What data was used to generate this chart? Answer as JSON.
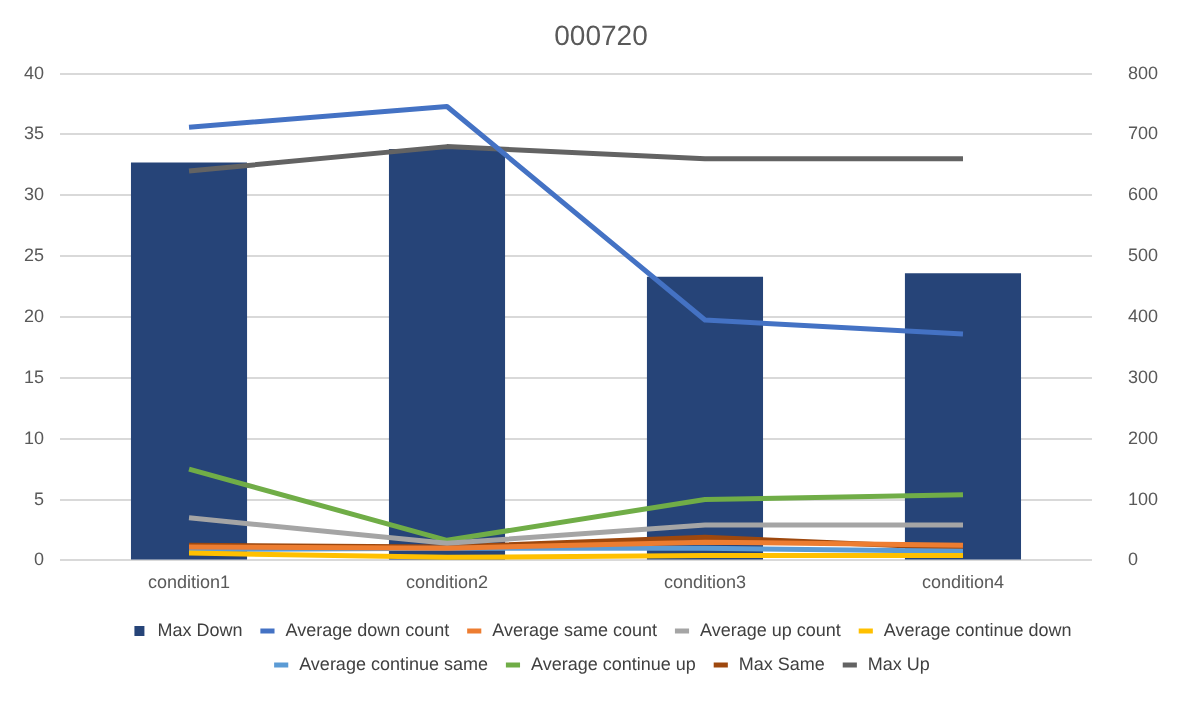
{
  "chart_data": {
    "type": "bar",
    "title": "000720",
    "categories": [
      "condition1",
      "condition2",
      "condition3",
      "condition4"
    ],
    "series": [
      {
        "name": "Max Down",
        "color": "#264478",
        "values": [
          32.7,
          33.8,
          23.3,
          23.6
        ]
      },
      {
        "name": "Average down count",
        "type": "line",
        "axis": "y2",
        "color": "#4472c4",
        "values": [
          712,
          746,
          395,
          372
        ]
      },
      {
        "name": "Average same count",
        "type": "line",
        "axis": "y2",
        "color": "#ed7d31",
        "values": [
          22,
          20,
          30,
          25
        ]
      },
      {
        "name": "Average up count",
        "type": "line",
        "axis": "y2",
        "color": "#a5a5a5",
        "values": [
          70,
          28,
          58,
          58
        ]
      },
      {
        "name": "Average continue down",
        "type": "line",
        "axis": "y2",
        "color": "#ffc000",
        "values": [
          12,
          5,
          8,
          8
        ]
      },
      {
        "name": "Average continue same",
        "type": "line",
        "axis": "y2",
        "color": "#5b9bd5",
        "values": [
          18,
          20,
          20,
          15
        ]
      },
      {
        "name": "Average continue up",
        "type": "line",
        "axis": "y2",
        "color": "#70ad47",
        "values": [
          150,
          33,
          100,
          108
        ]
      },
      {
        "name": "Max Same",
        "type": "line",
        "axis": "y2",
        "color": "#9e480e",
        "values": [
          25,
          22,
          38,
          20
        ]
      },
      {
        "name": "Max Up",
        "type": "line",
        "axis": "y2",
        "color": "#636363",
        "values": [
          640,
          680,
          660,
          660
        ]
      }
    ],
    "ylim": [
      0,
      40
    ],
    "yticks": [
      0,
      5,
      10,
      15,
      20,
      25,
      30,
      35,
      40
    ],
    "y2lim": [
      0,
      800
    ],
    "y2ticks": [
      0,
      100,
      200,
      300,
      400,
      500,
      600,
      700,
      800
    ],
    "grid": "y",
    "legend": "bottom",
    "marker": "none"
  }
}
